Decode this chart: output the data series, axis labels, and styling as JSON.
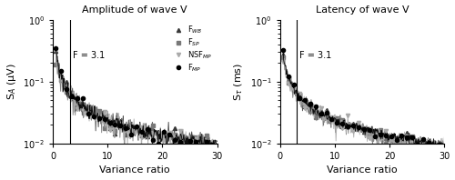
{
  "title_left": "Amplitude of wave V",
  "title_right": "Latency of wave V",
  "xlabel": "Variance ratio",
  "ylabel_left": "S$_A$ (μV)",
  "ylabel_right": "S$_\\tau$ (ms)",
  "f_label": "F = 3.1",
  "f_line_x": 3.1,
  "xmin": 0.5,
  "xmax": 30,
  "ymin": 0.01,
  "ymax": 1.0,
  "legend_labels": [
    "F$_{WB}$",
    "F$_{SP}$",
    "NSF$_{MP}$",
    "F$_{MP}$"
  ],
  "colors": [
    "#383838",
    "#787878",
    "#aaaaaa",
    "#000000"
  ],
  "markers": [
    "^",
    "s",
    "v",
    "o"
  ],
  "markersizes": [
    3,
    3,
    3,
    3
  ],
  "amp_scales": [
    0.175,
    0.17,
    0.163,
    0.172
  ],
  "amp_noise": [
    0.18,
    0.2,
    0.22,
    0.14
  ],
  "lat_scales": [
    0.165,
    0.162,
    0.158,
    0.17
  ],
  "lat_noise": [
    0.1,
    0.14,
    0.16,
    0.09
  ],
  "seed": 42
}
